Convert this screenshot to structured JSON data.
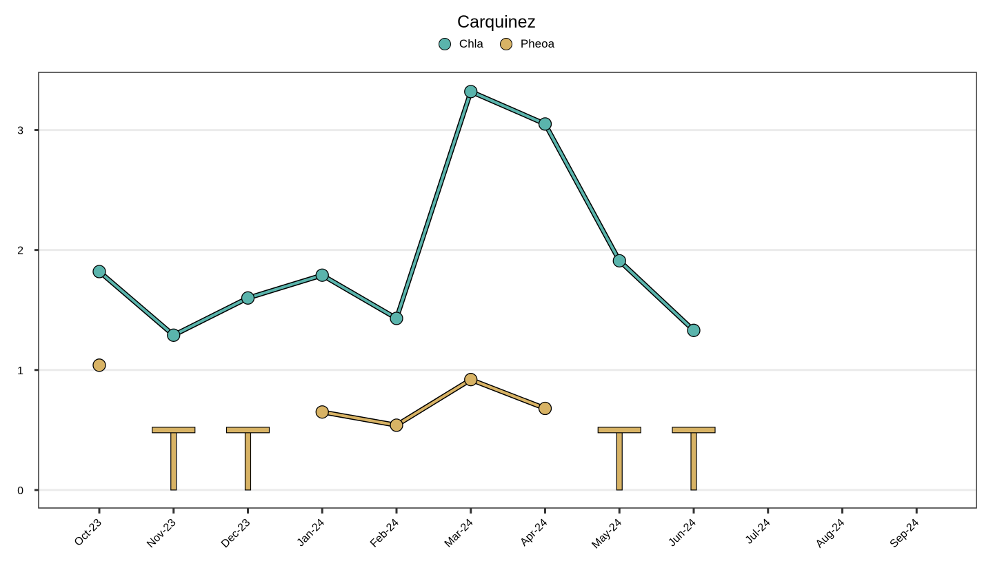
{
  "chart_data": {
    "type": "line",
    "title": "Carquinez",
    "xlabel": "",
    "ylabel": "",
    "categories": [
      "Oct-23",
      "Nov-23",
      "Dec-23",
      "Jan-24",
      "Feb-24",
      "Mar-24",
      "Apr-24",
      "May-24",
      "Jun-24",
      "Jul-24",
      "Aug-24",
      "Sep-24"
    ],
    "ylim": [
      -0.15,
      3.48
    ],
    "yticks": [
      0,
      1,
      2,
      3
    ],
    "grid": "horizontal",
    "legend_position": "top",
    "series": [
      {
        "name": "Chla",
        "color": "#5AB4AC",
        "values": [
          1.82,
          1.29,
          1.6,
          1.79,
          1.43,
          3.32,
          3.05,
          1.91,
          1.33,
          null,
          null,
          null
        ]
      },
      {
        "name": "Pheoa",
        "color": "#D8B365",
        "values": [
          1.04,
          null,
          null,
          0.65,
          0.54,
          0.92,
          0.68,
          null,
          null,
          null,
          null,
          null
        ],
        "below_detection_limit": [
          {
            "category": "Nov-23",
            "value": 0.5
          },
          {
            "category": "Dec-23",
            "value": 0.5
          },
          {
            "category": "May-24",
            "value": 0.5
          },
          {
            "category": "Jun-24",
            "value": 0.5
          }
        ]
      }
    ]
  }
}
